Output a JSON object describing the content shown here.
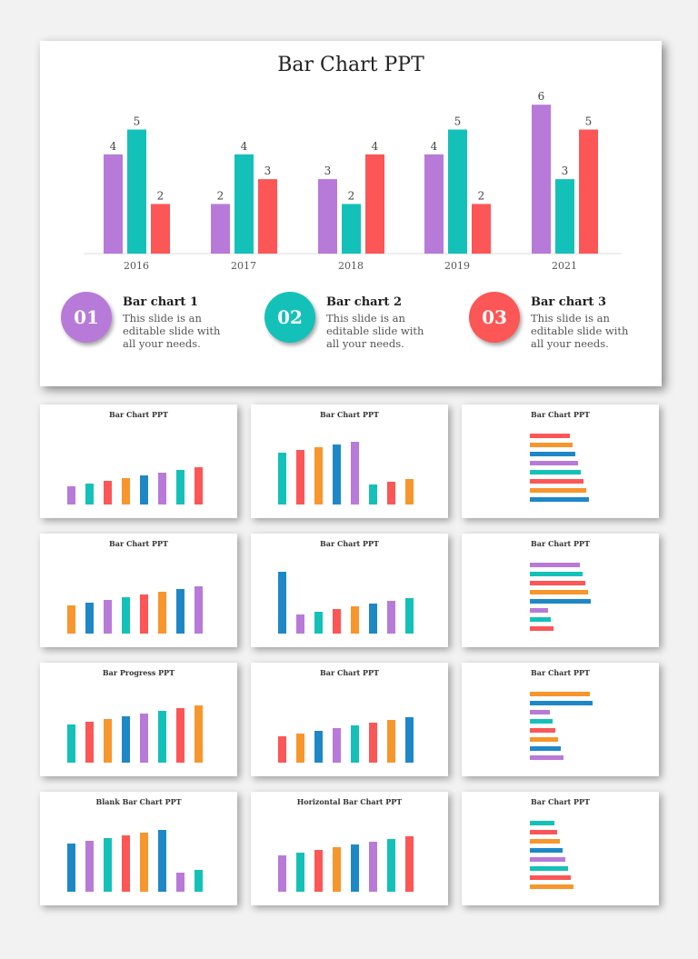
{
  "main_slide": {
    "title": "Bar Chart PPT",
    "cards": [
      {
        "number": "01",
        "heading": "Bar chart 1",
        "text": "This slide is an editable slide with all your needs.",
        "color": "#b87ad8"
      },
      {
        "number": "02",
        "heading": "Bar chart 2",
        "text": "This slide is an editable slide with all your needs.",
        "color": "#14c1b8"
      },
      {
        "number": "03",
        "heading": "Bar chart 3",
        "text": "This slide is an editable slide with all your needs.",
        "color": "#fc5656"
      }
    ]
  },
  "chart_data": {
    "type": "bar",
    "title": "Bar Chart PPT",
    "categories": [
      "2016",
      "2017",
      "2018",
      "2019",
      "2021"
    ],
    "series": [
      {
        "values": [
          4,
          2,
          3,
          4,
          6
        ],
        "color": "#b87ad8"
      },
      {
        "values": [
          5,
          4,
          2,
          5,
          3
        ],
        "color": "#14c1b8"
      },
      {
        "values": [
          2,
          3,
          4,
          2,
          5
        ],
        "color": "#fc5656"
      }
    ],
    "ylim": [
      0,
      6
    ],
    "grid": false,
    "data_labels": true
  },
  "thumbnails": [
    {
      "title": "Bar Chart PPT"
    },
    {
      "title": "Bar Chart PPT"
    },
    {
      "title": "Bar Chart PPT"
    },
    {
      "title": "Bar Chart PPT"
    },
    {
      "title": "Bar Chart PPT"
    },
    {
      "title": "Bar Chart PPT"
    },
    {
      "title": "Bar Progress PPT"
    },
    {
      "title": "Bar Chart PPT"
    },
    {
      "title": "Bar Chart PPT"
    },
    {
      "title": "Blank Bar Chart PPT"
    },
    {
      "title": "Horizontal Bar Chart PPT"
    },
    {
      "title": "Bar Chart PPT"
    }
  ]
}
